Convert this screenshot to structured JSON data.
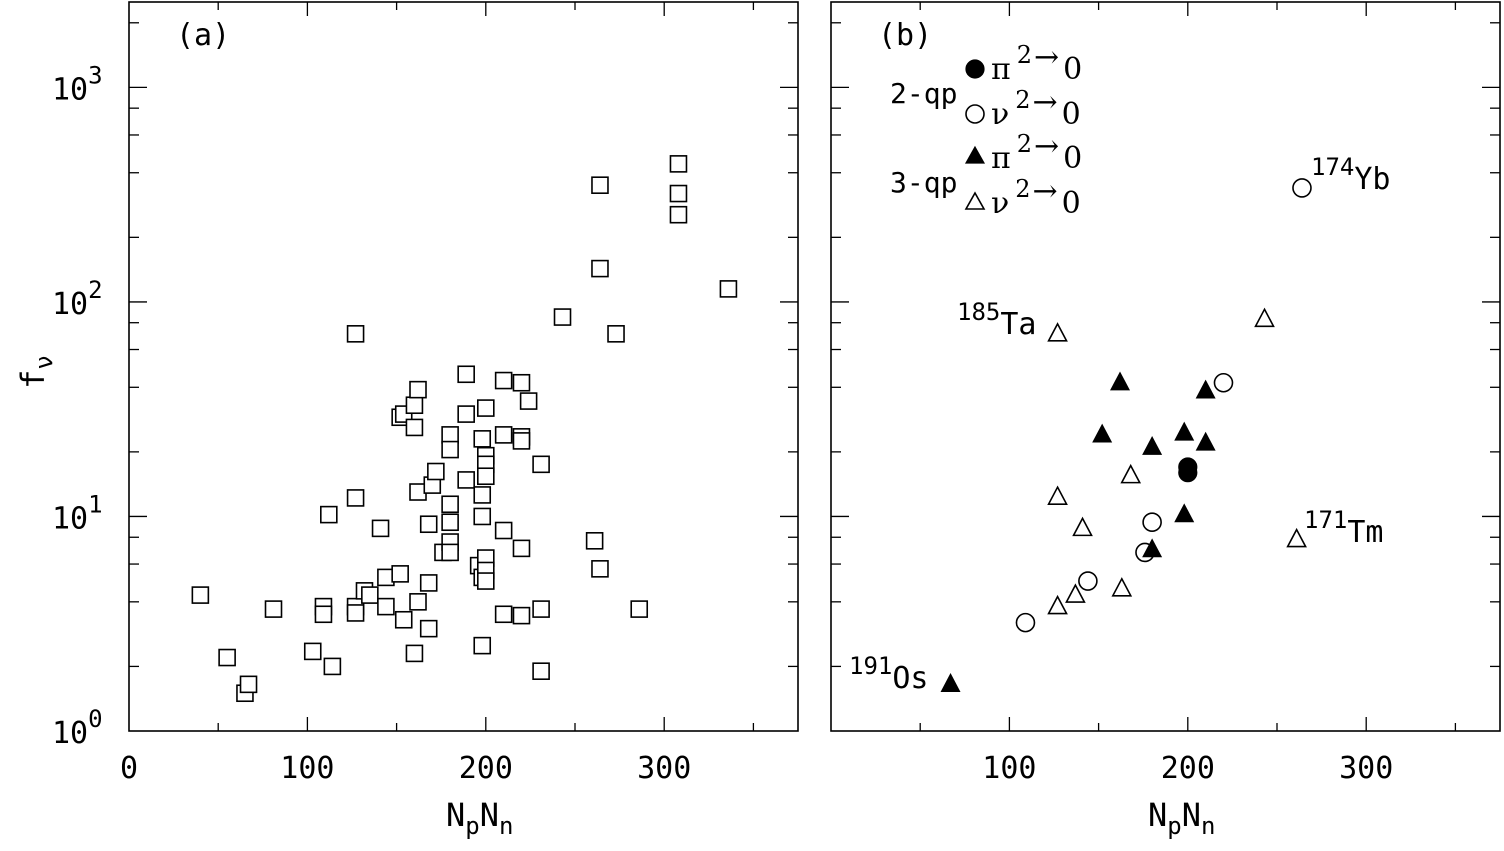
{
  "chart_data": [
    {
      "type": "scatter",
      "panel": "(a)",
      "xlabel_main": "N",
      "xlabel_sub1": "p",
      "xlabel_mid": "N",
      "xlabel_sub2": "n",
      "ylabel_main": "f",
      "ylabel_sub": "ν",
      "xlim": [
        0,
        375
      ],
      "ylim": [
        1,
        2500
      ],
      "yscale": "log",
      "xticks": [
        0,
        100,
        200,
        300
      ],
      "yticks": [
        {
          "base": "10",
          "exp": "0",
          "value": 1
        },
        {
          "base": "10",
          "exp": "1",
          "value": 10
        },
        {
          "base": "10",
          "exp": "2",
          "value": 100
        },
        {
          "base": "10",
          "exp": "3",
          "value": 1000
        }
      ],
      "series": [
        {
          "marker": "open-square",
          "points": [
            [
              40,
              4.3
            ],
            [
              55,
              2.2
            ],
            [
              65,
              1.5
            ],
            [
              67,
              1.65
            ],
            [
              81,
              3.7
            ],
            [
              103,
              2.35
            ],
            [
              109,
              3.8
            ],
            [
              109,
              3.5
            ],
            [
              112,
              10.2
            ],
            [
              114,
              2.0
            ],
            [
              127,
              71
            ],
            [
              127,
              12.2
            ],
            [
              127,
              3.8
            ],
            [
              127,
              3.55
            ],
            [
              132,
              4.5
            ],
            [
              135,
              4.3
            ],
            [
              141,
              8.8
            ],
            [
              144,
              5.2
            ],
            [
              144,
              3.8
            ],
            [
              152,
              29
            ],
            [
              152,
              5.4
            ],
            [
              154,
              3.3
            ],
            [
              154,
              30
            ],
            [
              160,
              26
            ],
            [
              160,
              33
            ],
            [
              160,
              2.3
            ],
            [
              162,
              39
            ],
            [
              162,
              13
            ],
            [
              162,
              4.0
            ],
            [
              168,
              9.2
            ],
            [
              168,
              4.9
            ],
            [
              168,
              3.0
            ],
            [
              170,
              14
            ],
            [
              172,
              16.2
            ],
            [
              176,
              6.8
            ],
            [
              180,
              24
            ],
            [
              180,
              20.5
            ],
            [
              180,
              11.4
            ],
            [
              180,
              9.4
            ],
            [
              180,
              7.6
            ],
            [
              180,
              6.8
            ],
            [
              189,
              46
            ],
            [
              189,
              30
            ],
            [
              189,
              14.8
            ],
            [
              196,
              5.9
            ],
            [
              198,
              23
            ],
            [
              198,
              12.6
            ],
            [
              198,
              10.0
            ],
            [
              198,
              5.2
            ],
            [
              198,
              2.5
            ],
            [
              200,
              32
            ],
            [
              200,
              19.2
            ],
            [
              200,
              17.5
            ],
            [
              200,
              15.4
            ],
            [
              200,
              6.4
            ],
            [
              200,
              5.6
            ],
            [
              200,
              5.0
            ],
            [
              210,
              43
            ],
            [
              210,
              24
            ],
            [
              210,
              8.6
            ],
            [
              210,
              3.5
            ],
            [
              220,
              42
            ],
            [
              220,
              23.5
            ],
            [
              220,
              22.5
            ],
            [
              220,
              7.1
            ],
            [
              220,
              3.45
            ],
            [
              224,
              34.5
            ],
            [
              231,
              17.5
            ],
            [
              231,
              3.7
            ],
            [
              231,
              1.9
            ],
            [
              243,
              85
            ],
            [
              261,
              7.7
            ],
            [
              264,
              350
            ],
            [
              264,
              143
            ],
            [
              264,
              5.7
            ],
            [
              273,
              71
            ],
            [
              286,
              3.7
            ],
            [
              308,
              440
            ],
            [
              308,
              320
            ],
            [
              308,
              255
            ],
            [
              336,
              115
            ]
          ]
        }
      ]
    },
    {
      "type": "scatter",
      "panel": "(b)",
      "xlabel_main": "N",
      "xlabel_sub1": "p",
      "xlabel_mid": "N",
      "xlabel_sub2": "n",
      "xlim": [
        0,
        375
      ],
      "ylim": [
        1,
        2500
      ],
      "yscale": "log",
      "xticks": [
        100,
        200,
        300
      ],
      "legend": {
        "group1_label": "2-qp",
        "group2_label": "3-qp",
        "entries": [
          {
            "marker": "filled-circle",
            "symbol": "π",
            "exp": "2",
            "arrow": "→",
            "target": "0"
          },
          {
            "marker": "open-circle",
            "symbol": "ν",
            "exp": "2",
            "arrow": "→",
            "target": "0"
          },
          {
            "marker": "filled-triangle",
            "symbol": "π",
            "exp": "2",
            "arrow": "→",
            "target": "0"
          },
          {
            "marker": "open-triangle",
            "symbol": "ν",
            "exp": "2",
            "arrow": "→",
            "target": "0"
          }
        ]
      },
      "series": [
        {
          "marker": "filled-circle",
          "points": [
            [
              200,
              17
            ],
            [
              200,
              16
            ]
          ]
        },
        {
          "marker": "open-circle",
          "points": [
            [
              109,
              3.2
            ],
            [
              144,
              5.0
            ],
            [
              176,
              6.8
            ],
            [
              180,
              9.4
            ],
            [
              220,
              42
            ],
            [
              264,
              340
            ]
          ]
        },
        {
          "marker": "filled-triangle",
          "points": [
            [
              67,
              1.65
            ],
            [
              152,
              24
            ],
            [
              162,
              42
            ],
            [
              180,
              7.0
            ],
            [
              180,
              21
            ],
            [
              198,
              24.5
            ],
            [
              198,
              10.2
            ],
            [
              210,
              38.5
            ],
            [
              210,
              22
            ]
          ]
        },
        {
          "marker": "open-triangle",
          "points": [
            [
              127,
              71
            ],
            [
              127,
              12.3
            ],
            [
              127,
              3.8
            ],
            [
              137,
              4.3
            ],
            [
              141,
              8.8
            ],
            [
              163,
              4.6
            ],
            [
              168,
              15.5
            ],
            [
              243,
              83
            ],
            [
              261,
              7.8
            ]
          ]
        }
      ],
      "annotations": [
        {
          "mass": "174",
          "element": "Yb"
        },
        {
          "mass": "185",
          "element": "Ta"
        },
        {
          "mass": "171",
          "element": "Tm"
        },
        {
          "mass": "191",
          "element": "Os"
        }
      ]
    }
  ]
}
